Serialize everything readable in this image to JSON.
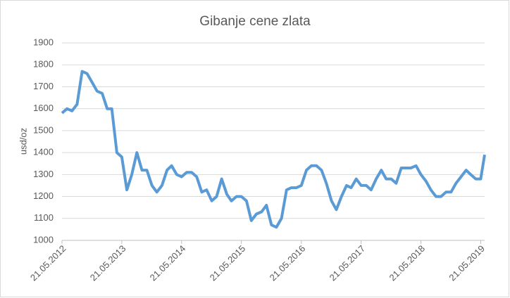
{
  "chart_data": {
    "type": "line",
    "title": "Gibanje cene zlata",
    "y_label": "usd/oz",
    "x": [
      "21.05.2012",
      "21.06.2012",
      "21.07.2012",
      "21.08.2012",
      "21.09.2012",
      "21.10.2012",
      "21.11.2012",
      "21.12.2012",
      "21.01.2013",
      "21.02.2013",
      "21.03.2013",
      "21.04.2013",
      "21.05.2013",
      "21.06.2013",
      "21.07.2013",
      "21.08.2013",
      "21.09.2013",
      "21.10.2013",
      "21.11.2013",
      "21.12.2013",
      "21.01.2014",
      "21.02.2014",
      "21.03.2014",
      "21.04.2014",
      "21.05.2014",
      "21.06.2014",
      "21.07.2014",
      "21.08.2014",
      "21.09.2014",
      "21.10.2014",
      "21.11.2014",
      "21.12.2014",
      "21.01.2015",
      "21.02.2015",
      "21.03.2015",
      "21.04.2015",
      "21.05.2015",
      "21.06.2015",
      "21.07.2015",
      "21.08.2015",
      "21.09.2015",
      "21.10.2015",
      "21.11.2015",
      "21.12.2015",
      "21.01.2016",
      "21.02.2016",
      "21.03.2016",
      "21.04.2016",
      "21.05.2016",
      "21.06.2016",
      "21.07.2016",
      "21.08.2016",
      "21.09.2016",
      "21.10.2016",
      "21.11.2016",
      "21.12.2016",
      "21.01.2017",
      "21.02.2017",
      "21.03.2017",
      "21.04.2017",
      "21.05.2017",
      "21.06.2017",
      "21.07.2017",
      "21.08.2017",
      "21.09.2017",
      "21.10.2017",
      "21.11.2017",
      "21.12.2017",
      "21.01.2018",
      "21.02.2018",
      "21.03.2018",
      "21.04.2018",
      "21.05.2018",
      "21.06.2018",
      "21.07.2018",
      "21.08.2018",
      "21.09.2018",
      "21.10.2018",
      "21.11.2018",
      "21.12.2018",
      "21.01.2019",
      "21.02.2019",
      "21.03.2019",
      "21.04.2019",
      "21.05.2019",
      "14.06.2019"
    ],
    "series": [
      {
        "name": "usd/oz",
        "color": "#5b9bd5",
        "values": [
          1580,
          1600,
          1590,
          1620,
          1770,
          1760,
          1720,
          1680,
          1670,
          1600,
          1600,
          1400,
          1380,
          1230,
          1300,
          1400,
          1320,
          1320,
          1250,
          1220,
          1250,
          1320,
          1340,
          1300,
          1290,
          1310,
          1310,
          1290,
          1220,
          1230,
          1180,
          1200,
          1280,
          1210,
          1180,
          1200,
          1200,
          1180,
          1090,
          1120,
          1130,
          1160,
          1070,
          1060,
          1100,
          1230,
          1240,
          1240,
          1250,
          1320,
          1340,
          1340,
          1320,
          1260,
          1180,
          1140,
          1200,
          1250,
          1240,
          1280,
          1250,
          1250,
          1230,
          1280,
          1320,
          1280,
          1280,
          1260,
          1330,
          1330,
          1330,
          1340,
          1300,
          1270,
          1230,
          1200,
          1200,
          1220,
          1220,
          1260,
          1290,
          1320,
          1300,
          1280,
          1280,
          1390
        ]
      }
    ],
    "xlim": [
      "21.05.2012",
      "14.06.2019"
    ],
    "xticks": [
      "21.05.2012",
      "21.05.2013",
      "21.05.2014",
      "21.05.2015",
      "21.05.2016",
      "21.05.2017",
      "21.05.2018",
      "21.05.2019"
    ],
    "ylim": [
      1000,
      1900
    ],
    "yticks": [
      1000,
      1100,
      1200,
      1300,
      1400,
      1500,
      1600,
      1700,
      1800,
      1900
    ],
    "grid": true
  }
}
